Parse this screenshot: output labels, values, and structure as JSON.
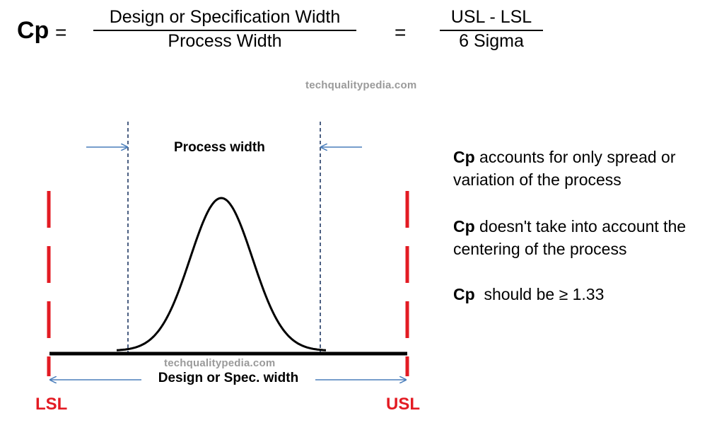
{
  "formula": {
    "lhs": "Cp",
    "equals": "=",
    "fraction1": {
      "numerator": "Design or  Specification  Width",
      "denominator": "Process Width"
    },
    "fraction2": {
      "numerator": "USL - LSL",
      "denominator": "6 Sigma"
    }
  },
  "watermark": "techqualitypedia.com",
  "diagram": {
    "process_width_label": "Process width",
    "spec_width_label": "Design or Spec. width",
    "lsl_label": "LSL",
    "usl_label": "USL"
  },
  "notes": [
    {
      "term": "Cp",
      "text": " accounts for only spread or variation of the process"
    },
    {
      "term": "Cp",
      "text": " doesn't take into account the centering of the process"
    },
    {
      "term": "Cp",
      "text": "  should be ≥ 1.33"
    }
  ],
  "colors": {
    "limit_lines": "#e31b23",
    "arrows": "#4a7ebb",
    "process_bounds": "#1f3864"
  }
}
